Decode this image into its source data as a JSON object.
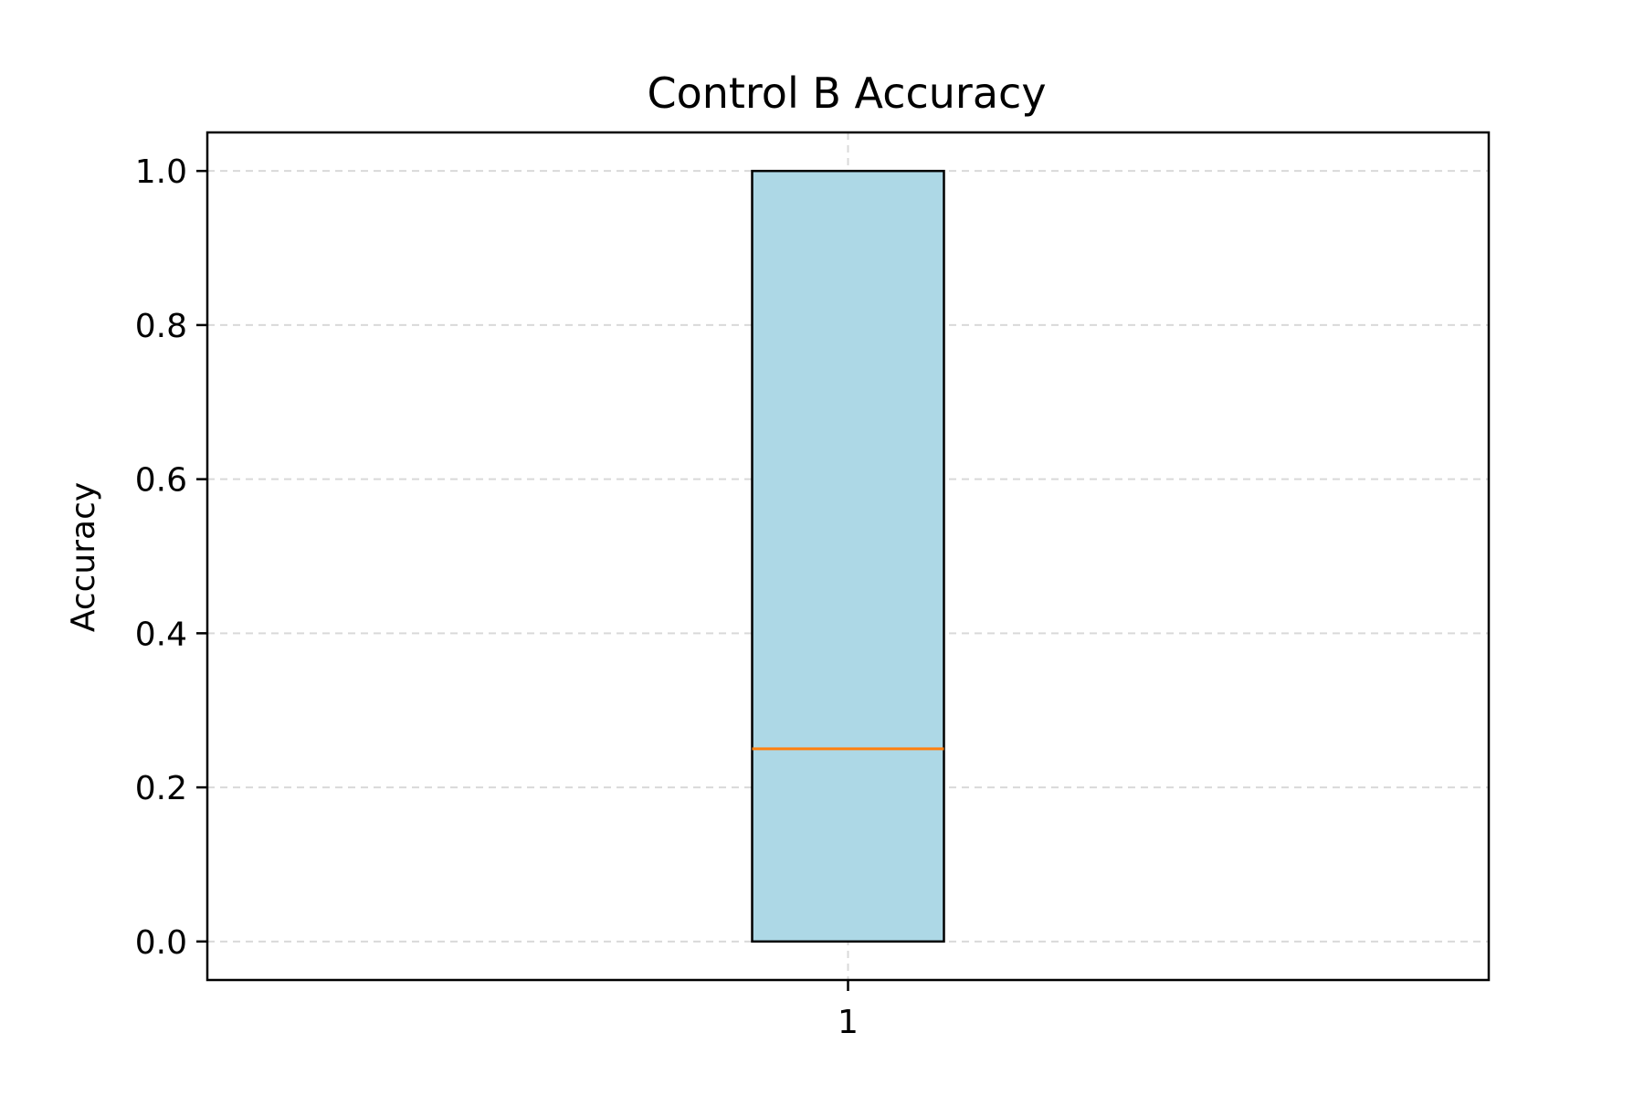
{
  "chart_data": {
    "type": "box",
    "title": "Control B Accuracy",
    "xlabel": "",
    "ylabel": "Accuracy",
    "categories": [
      "1"
    ],
    "ylim": [
      -0.05,
      1.05
    ],
    "yticks": [
      0.0,
      0.2,
      0.4,
      0.6,
      0.8,
      1.0
    ],
    "ytick_labels": [
      "0.0",
      "0.2",
      "0.4",
      "0.6",
      "0.8",
      "1.0"
    ],
    "boxes": [
      {
        "category": "1",
        "min": 0.0,
        "q1": 0.0,
        "median": 0.25,
        "q3": 1.0,
        "max": 1.0
      }
    ],
    "grid": true,
    "grid_style": "dashed",
    "colors": {
      "box_fill": "#add8e6",
      "box_edge": "#000000",
      "median": "#ff7f0e",
      "grid": "#d9d9d9"
    }
  }
}
